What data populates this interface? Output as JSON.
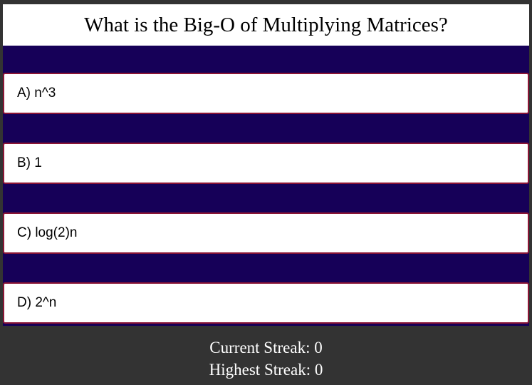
{
  "question": {
    "text": "What is the Big-O of Multiplying Matrices?"
  },
  "answers": [
    {
      "label": "A) n^3"
    },
    {
      "label": "B) 1"
    },
    {
      "label": "C) log(2)n"
    },
    {
      "label": "D) 2^n"
    }
  ],
  "stats": {
    "current_streak": "Current Streak: 0",
    "highest_streak": "Highest Streak: 0"
  },
  "colors": {
    "page_background": "#333333",
    "answers_panel": "#160058",
    "answer_border": "#8b1535",
    "card_background": "#ffffff"
  }
}
